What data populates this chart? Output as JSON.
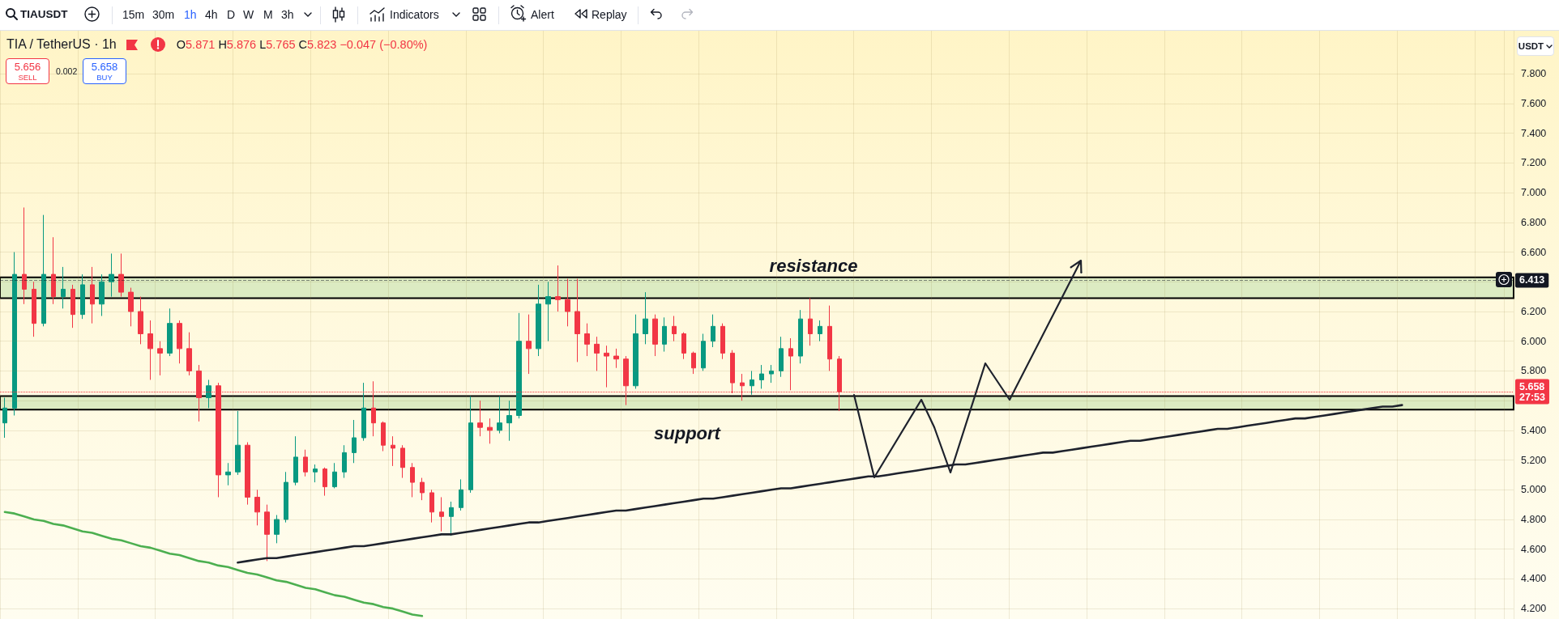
{
  "chart_data": {
    "type": "candlestick",
    "title": "TIA / TetherUS · 1h",
    "subtitle": "O5.871 H5.876 L5.765 C5.823 −0.047 (−0.80%)",
    "annotations": [
      "TIAUSDT",
      "15m",
      "30m",
      "1h",
      "4h",
      "D",
      "W",
      "M",
      "3h",
      "Indicators",
      "Alert",
      "Replay",
      "5.656",
      "SELL",
      "0.002",
      "5.658",
      "BUY",
      "USDT"
    ],
    "categories": [
      null,
      null,
      null,
      null,
      null,
      null,
      null,
      null,
      null,
      null,
      null,
      null,
      null,
      null,
      null,
      null,
      null,
      null,
      null,
      null,
      null,
      null,
      null,
      null,
      null,
      null,
      null,
      null,
      null,
      null,
      null,
      null,
      null,
      null,
      null,
      null,
      null,
      null,
      null,
      null,
      null,
      null,
      null,
      null,
      null,
      null,
      null,
      null,
      null,
      null,
      null,
      null,
      null,
      null,
      null,
      null,
      null,
      null,
      null,
      null,
      null,
      null,
      null,
      null,
      null,
      null,
      null,
      null,
      null,
      null,
      null,
      null,
      null,
      null,
      null,
      null,
      null,
      null,
      null,
      null,
      null,
      null,
      null,
      null,
      null,
      null,
      null,
      null,
      null,
      null,
      null,
      null,
      null,
      null,
      null,
      null,
      null,
      null,
      null,
      null,
      null,
      null,
      null,
      null,
      null,
      null,
      null,
      null,
      null,
      null,
      null,
      null,
      null,
      null,
      null,
      null,
      null,
      null,
      null,
      null,
      null,
      null,
      null,
      null,
      null,
      null,
      null,
      null,
      null,
      null,
      null,
      null,
      null,
      null,
      null,
      null,
      null,
      null,
      null,
      null,
      null,
      null,
      null,
      null,
      null,
      null,
      null,
      null,
      null,
      null,
      null,
      null,
      null,
      null,
      null,
      null
    ],
    "ohlc": [
      [
        5.45,
        5.62,
        5.35,
        5.55
      ],
      [
        5.55,
        6.6,
        5.5,
        6.45
      ],
      [
        6.45,
        6.9,
        6.25,
        6.35
      ],
      [
        6.35,
        6.4,
        6.03,
        6.12
      ],
      [
        6.12,
        6.85,
        6.1,
        6.45
      ],
      [
        6.45,
        6.7,
        6.25,
        6.3
      ],
      [
        6.3,
        6.5,
        6.22,
        6.35
      ],
      [
        6.35,
        6.38,
        6.09,
        6.18
      ],
      [
        6.18,
        6.45,
        6.15,
        6.38
      ],
      [
        6.38,
        6.5,
        6.12,
        6.25
      ],
      [
        6.25,
        6.45,
        6.17,
        6.4
      ],
      [
        6.4,
        6.59,
        6.3,
        6.45
      ],
      [
        6.45,
        6.59,
        6.3,
        6.33
      ],
      [
        6.33,
        6.36,
        6.1,
        6.2
      ],
      [
        6.2,
        6.3,
        5.98,
        6.05
      ],
      [
        6.05,
        6.14,
        5.74,
        5.95
      ],
      [
        5.95,
        6.0,
        5.77,
        5.92
      ],
      [
        5.92,
        6.22,
        5.9,
        6.12
      ],
      [
        6.12,
        6.14,
        5.85,
        5.95
      ],
      [
        5.95,
        6.06,
        5.77,
        5.8
      ],
      [
        5.8,
        5.84,
        5.46,
        5.62
      ],
      [
        5.62,
        5.74,
        5.55,
        5.7
      ],
      [
        5.7,
        5.72,
        4.95,
        5.1
      ],
      [
        5.1,
        5.18,
        5.03,
        5.12
      ],
      [
        5.12,
        5.53,
        5.1,
        5.3
      ],
      [
        5.3,
        5.32,
        4.9,
        4.95
      ],
      [
        4.95,
        5.0,
        4.76,
        4.85
      ],
      [
        4.85,
        4.9,
        4.52,
        4.7
      ],
      [
        4.7,
        4.83,
        4.64,
        4.8
      ],
      [
        4.8,
        5.12,
        4.78,
        5.05
      ],
      [
        5.05,
        5.36,
        5.03,
        5.22
      ],
      [
        5.22,
        5.27,
        5.09,
        5.12
      ],
      [
        5.12,
        5.17,
        5.05,
        5.14
      ],
      [
        5.14,
        5.15,
        4.96,
        5.02
      ],
      [
        5.02,
        5.18,
        5.01,
        5.12
      ],
      [
        5.12,
        5.3,
        5.08,
        5.25
      ],
      [
        5.25,
        5.47,
        5.18,
        5.35
      ],
      [
        5.35,
        5.72,
        5.33,
        5.55
      ],
      [
        5.55,
        5.73,
        5.36,
        5.45
      ],
      [
        5.45,
        5.46,
        5.26,
        5.3
      ],
      [
        5.3,
        5.36,
        5.16,
        5.28
      ],
      [
        5.28,
        5.3,
        5.08,
        5.15
      ],
      [
        5.15,
        5.18,
        4.95,
        5.05
      ],
      [
        5.05,
        5.08,
        4.93,
        4.98
      ],
      [
        4.98,
        5.0,
        4.78,
        4.85
      ],
      [
        4.85,
        4.95,
        4.72,
        4.82
      ],
      [
        4.82,
        4.92,
        4.69,
        4.88
      ],
      [
        4.88,
        5.07,
        4.86,
        5.0
      ],
      [
        5.0,
        5.63,
        4.98,
        5.45
      ],
      [
        5.45,
        5.6,
        5.36,
        5.42
      ],
      [
        5.42,
        5.48,
        5.31,
        5.4
      ],
      [
        5.4,
        5.63,
        5.38,
        5.45
      ],
      [
        5.45,
        5.6,
        5.33,
        5.5
      ],
      [
        5.5,
        6.19,
        5.48,
        6.0
      ],
      [
        6.0,
        6.18,
        5.78,
        5.95
      ],
      [
        5.95,
        6.38,
        5.9,
        6.25
      ],
      [
        6.25,
        6.4,
        6.0,
        6.3
      ],
      [
        6.3,
        6.51,
        6.2,
        6.28
      ],
      [
        6.28,
        6.42,
        6.1,
        6.2
      ],
      [
        6.2,
        6.42,
        5.86,
        6.05
      ],
      [
        6.05,
        6.12,
        5.9,
        5.98
      ],
      [
        5.98,
        6.03,
        5.8,
        5.92
      ],
      [
        5.92,
        5.97,
        5.69,
        5.9
      ],
      [
        5.9,
        5.95,
        5.82,
        5.88
      ],
      [
        5.88,
        5.9,
        5.57,
        5.7
      ],
      [
        5.7,
        6.18,
        5.68,
        6.05
      ],
      [
        6.05,
        6.33,
        5.98,
        6.15
      ],
      [
        6.15,
        6.18,
        5.9,
        5.98
      ],
      [
        5.98,
        6.16,
        5.93,
        6.1
      ],
      [
        6.1,
        6.17,
        6.0,
        6.05
      ],
      [
        6.05,
        6.06,
        5.88,
        5.92
      ],
      [
        5.92,
        5.93,
        5.78,
        5.82
      ],
      [
        5.82,
        6.05,
        5.8,
        6.0
      ],
      [
        6.0,
        6.18,
        5.96,
        6.1
      ],
      [
        6.1,
        6.12,
        5.88,
        5.92
      ],
      [
        5.92,
        5.94,
        5.65,
        5.72
      ],
      [
        5.72,
        5.78,
        5.6,
        5.7
      ],
      [
        5.7,
        5.8,
        5.64,
        5.74
      ],
      [
        5.74,
        5.84,
        5.68,
        5.78
      ],
      [
        5.78,
        5.84,
        5.72,
        5.8
      ],
      [
        5.8,
        6.03,
        5.76,
        5.95
      ],
      [
        5.95,
        6.02,
        5.67,
        5.9
      ],
      [
        5.9,
        6.21,
        5.85,
        6.15
      ],
      [
        6.15,
        6.29,
        5.97,
        6.05
      ],
      [
        6.05,
        6.14,
        6.0,
        6.1
      ],
      [
        6.1,
        6.24,
        5.8,
        5.88
      ],
      [
        5.88,
        5.9,
        5.53,
        5.66
      ],
      null,
      null,
      null,
      null,
      null,
      null,
      null,
      null,
      null,
      null,
      null,
      null,
      null,
      null,
      null,
      null,
      null,
      null,
      null,
      null,
      null,
      null,
      null,
      null,
      null,
      null,
      null,
      null,
      null,
      null,
      null,
      null,
      null,
      null,
      null,
      null,
      null,
      null,
      null,
      null,
      null,
      null,
      null,
      null,
      null,
      null,
      null,
      null,
      null,
      null,
      null,
      null,
      null,
      null,
      null,
      null,
      null,
      null,
      null,
      null,
      null,
      null,
      null,
      null,
      null,
      null,
      null,
      null,
      null
    ],
    "colors": [
      "#089981",
      "#089981",
      "#f23645",
      "#f23645",
      "#089981",
      "#f23645",
      "#089981",
      "#f23645",
      "#089981",
      "#f23645",
      "#089981",
      "#089981",
      "#f23645",
      "#f23645",
      "#f23645",
      "#f23645",
      "#f23645",
      "#089981",
      "#f23645",
      "#f23645",
      "#f23645",
      "#089981",
      "#f23645",
      "#089981",
      "#089981",
      "#f23645",
      "#f23645",
      "#f23645",
      "#089981",
      "#089981",
      "#089981",
      "#f23645",
      "#089981",
      "#f23645",
      "#089981",
      "#089981",
      "#089981",
      "#089981",
      "#f23645",
      "#f23645",
      "#f23645",
      "#f23645",
      "#f23645",
      "#f23645",
      "#f23645",
      "#f23645",
      "#089981",
      "#089981",
      "#089981",
      "#f23645",
      "#f23645",
      "#089981",
      "#089981",
      "#089981",
      "#f23645",
      "#089981",
      "#089981",
      "#f23645",
      "#f23645",
      "#f23645",
      "#f23645",
      "#f23645",
      "#f23645",
      "#f23645",
      "#f23645",
      "#089981",
      "#089981",
      "#f23645",
      "#089981",
      "#f23645",
      "#f23645",
      "#f23645",
      "#089981",
      "#089981",
      "#f23645",
      "#f23645",
      "#f23645",
      "#089981",
      "#089981",
      "#089981",
      "#089981",
      "#f23645",
      "#089981",
      "#f23645",
      "#089981",
      "#f23645",
      "#f23645",
      null,
      null,
      null,
      null,
      null,
      null,
      null,
      null,
      null,
      null,
      null,
      null,
      null,
      null,
      null,
      null,
      null,
      null,
      null,
      null,
      null,
      null,
      null,
      null,
      null,
      null,
      null,
      null,
      null,
      null,
      null,
      null,
      null,
      null,
      null,
      null,
      null,
      null,
      null,
      null,
      null,
      null,
      null,
      null,
      null,
      null,
      null,
      null,
      null,
      null,
      null,
      null,
      null,
      null,
      null,
      null,
      null,
      null,
      null,
      null,
      null,
      null,
      null,
      null,
      null,
      null,
      null,
      null,
      null
    ],
    "series": [
      {
        "type": "line",
        "color": "#4caf50",
        "values": [
          4.85,
          4.84,
          4.82,
          4.8,
          4.79,
          4.77,
          4.76,
          4.74,
          4.72,
          4.71,
          4.69,
          4.67,
          4.66,
          4.64,
          4.62,
          4.61,
          4.59,
          4.57,
          4.56,
          4.54,
          4.52,
          4.51,
          4.49,
          4.48,
          4.46,
          4.44,
          4.43,
          4.41,
          4.39,
          4.38,
          4.36,
          4.34,
          4.33,
          4.31,
          4.29,
          4.28,
          4.26,
          4.24,
          4.23,
          4.21,
          4.2,
          4.18,
          4.16,
          4.15,
          null,
          null,
          null,
          null,
          null,
          null,
          null,
          null,
          null,
          null,
          null,
          null,
          null,
          null,
          null,
          null,
          null,
          null,
          null,
          null,
          null,
          null,
          null,
          null,
          null,
          null,
          null,
          null,
          null,
          null,
          null,
          null,
          null,
          null,
          null,
          null,
          null,
          null,
          null,
          null,
          null,
          null,
          null,
          null,
          null,
          null,
          null,
          null,
          null,
          null,
          null,
          null,
          null,
          null,
          null,
          null,
          null,
          null,
          null,
          null,
          null,
          null,
          null,
          null,
          null,
          null,
          null,
          null,
          null,
          null,
          null,
          null,
          null,
          null,
          null,
          null,
          null,
          null,
          null,
          null,
          null,
          null,
          null,
          null,
          null,
          null,
          null,
          null,
          null,
          null,
          null,
          null,
          null,
          null,
          null,
          null,
          null,
          null,
          null,
          null,
          null,
          null,
          null,
          null,
          null,
          null,
          null,
          null,
          null,
          null,
          null,
          null
        ]
      },
      {
        "type": "line",
        "color": "#1e222d",
        "values": [
          null,
          null,
          null,
          null,
          null,
          null,
          null,
          null,
          null,
          null,
          null,
          null,
          null,
          null,
          null,
          null,
          null,
          null,
          null,
          null,
          null,
          null,
          null,
          null,
          4.51,
          4.52,
          4.53,
          4.54,
          4.54,
          4.55,
          4.56,
          4.57,
          4.58,
          4.59,
          4.6,
          4.61,
          4.62,
          4.62,
          4.63,
          4.64,
          4.65,
          4.66,
          4.67,
          4.68,
          4.69,
          4.7,
          4.7,
          4.71,
          4.72,
          4.73,
          4.74,
          4.75,
          4.76,
          4.77,
          4.78,
          4.78,
          4.79,
          4.8,
          4.81,
          4.82,
          4.83,
          4.84,
          4.85,
          4.86,
          4.86,
          4.87,
          4.88,
          4.89,
          4.9,
          4.91,
          4.92,
          4.93,
          4.94,
          4.94,
          4.95,
          4.96,
          4.97,
          4.98,
          4.99,
          5.0,
          5.01,
          5.01,
          5.02,
          5.03,
          5.04,
          5.05,
          5.06,
          5.07,
          5.08,
          5.09,
          5.09,
          5.1,
          5.11,
          5.12,
          5.13,
          5.14,
          5.15,
          5.16,
          5.17,
          5.17,
          5.18,
          5.19,
          5.2,
          5.21,
          5.22,
          5.23,
          5.24,
          5.25,
          5.25,
          5.26,
          5.27,
          5.28,
          5.29,
          5.3,
          5.31,
          5.32,
          5.33,
          5.33,
          5.34,
          5.35,
          5.36,
          5.37,
          5.38,
          5.39,
          5.4,
          5.41,
          5.41,
          5.42,
          5.43,
          5.44,
          5.45,
          5.46,
          5.47,
          5.48,
          5.48,
          5.49,
          5.5,
          5.51,
          5.52,
          5.53,
          5.54,
          5.55,
          5.56,
          5.56,
          5.57,
          null,
          null,
          null,
          null,
          null,
          null,
          null,
          null,
          null,
          null,
          null
        ]
      }
    ],
    "ylim": [
      4.13,
      8.09
    ],
    "yticks": [
      {
        "value": 4.2,
        "label": "4.200"
      },
      {
        "value": 4.4,
        "label": "4.400"
      },
      {
        "value": 4.6,
        "label": "4.600"
      },
      {
        "value": 4.8,
        "label": "4.800"
      },
      {
        "value": 5,
        "label": "5.000"
      },
      {
        "value": 5.2,
        "label": "5.200"
      },
      {
        "value": 5.4,
        "label": "5.400"
      },
      {
        "value": 5.6,
        "label": null
      },
      {
        "value": 5.8,
        "label": "5.800"
      },
      {
        "value": 6,
        "label": "6.000"
      },
      {
        "value": 6.2,
        "label": "6.200"
      },
      {
        "value": 6.4,
        "label": null
      },
      {
        "value": 6.6,
        "label": "6.600"
      },
      {
        "value": 6.8,
        "label": "6.800"
      },
      {
        "value": 7,
        "label": "7.000"
      },
      {
        "value": 7.2,
        "label": "7.200"
      },
      {
        "value": 7.4,
        "label": "7.400"
      },
      {
        "value": 7.6,
        "label": "7.600"
      },
      {
        "value": 7.8,
        "label": "7.800"
      }
    ],
    "grid": true,
    "tick_labels": "y",
    "ref_lines": [
      {
        "axis": "y",
        "value": 6.413,
        "label": "6.413",
        "color": "#131722",
        "line_style": "dashed"
      },
      {
        "axis": "y",
        "value": 5.658,
        "label": "5.658\n27:53",
        "color": "#f23645",
        "line_style": "dotted"
      }
    ],
    "bands": [
      {
        "axis": "y",
        "from": 6.29,
        "to": 6.43,
        "label": "resistance",
        "color": "#dcebc2"
      },
      {
        "axis": "y",
        "from": 5.54,
        "to": 5.63,
        "label": "support",
        "color": "#dcebc2"
      }
    ]
  }
}
